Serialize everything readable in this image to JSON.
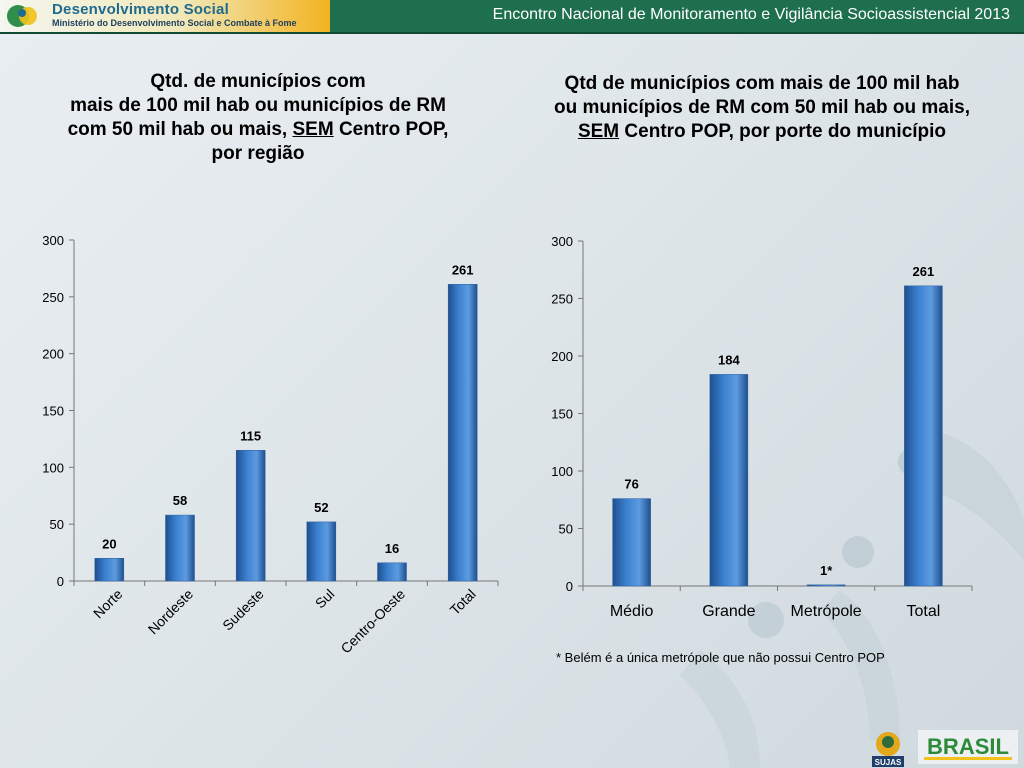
{
  "header": {
    "logo_title": "Desenvolvimento Social",
    "logo_subtitle": "Ministério do Desenvolvimento Social e Combate à Fome",
    "event_title": "Encontro Nacional de Monitoramento e Vigilância Socioassistencial 2013"
  },
  "left_title": {
    "line1": "Qtd. de municípios com",
    "line2": "mais de 100 mil hab ou municípios de RM",
    "line3_pre": "com 50 mil hab ou mais, ",
    "line3_em": "SEM",
    "line3_post": " Centro POP,",
    "line4": "por região"
  },
  "right_title": {
    "line1": "Qtd de municípios com mais de 100 mil hab",
    "line2": "ou municípios de RM com 50 mil hab ou mais,",
    "line3_em": "SEM",
    "line3_post": " Centro POP, por porte do município"
  },
  "footnote": "* Belém é a única metrópole que não possui Centro POP",
  "footer": {
    "sujas_label": "SUJAS",
    "brasil_label": "BRASIL"
  },
  "colors": {
    "bar_main": "#3a7fcf",
    "bar_dark": "#1f4f8f",
    "header_green": "#1d6f4d"
  },
  "chart_data": [
    {
      "type": "bar",
      "title": "Qtd. de municípios com mais de 100 mil hab ou municípios de RM com 50 mil hab ou mais, SEM Centro POP, por região",
      "categories": [
        "Norte",
        "Nordeste",
        "Sudeste",
        "Sul",
        "Centro-Oeste",
        "Total"
      ],
      "values": [
        20,
        58,
        115,
        52,
        16,
        261
      ],
      "data_labels": [
        "20",
        "58",
        "115",
        "52",
        "16",
        "261"
      ],
      "ylim": [
        0,
        300
      ],
      "yticks": [
        0,
        50,
        100,
        150,
        200,
        250,
        300
      ],
      "grid": false,
      "xlabel_rotation": "-45",
      "xlabel": "",
      "ylabel": ""
    },
    {
      "type": "bar",
      "title": "Qtd de municípios com mais de 100 mil hab ou municípios de RM com 50 mil hab ou mais, SEM Centro POP, por porte do município",
      "categories": [
        "Médio",
        "Grande",
        "Metrópole",
        "Total"
      ],
      "values": [
        76,
        184,
        1,
        261
      ],
      "data_labels": [
        "76",
        "184",
        "1*",
        "261"
      ],
      "ylim": [
        0,
        300
      ],
      "yticks": [
        0,
        50,
        100,
        150,
        200,
        250,
        300
      ],
      "grid": false,
      "xlabel": "",
      "ylabel": ""
    }
  ]
}
